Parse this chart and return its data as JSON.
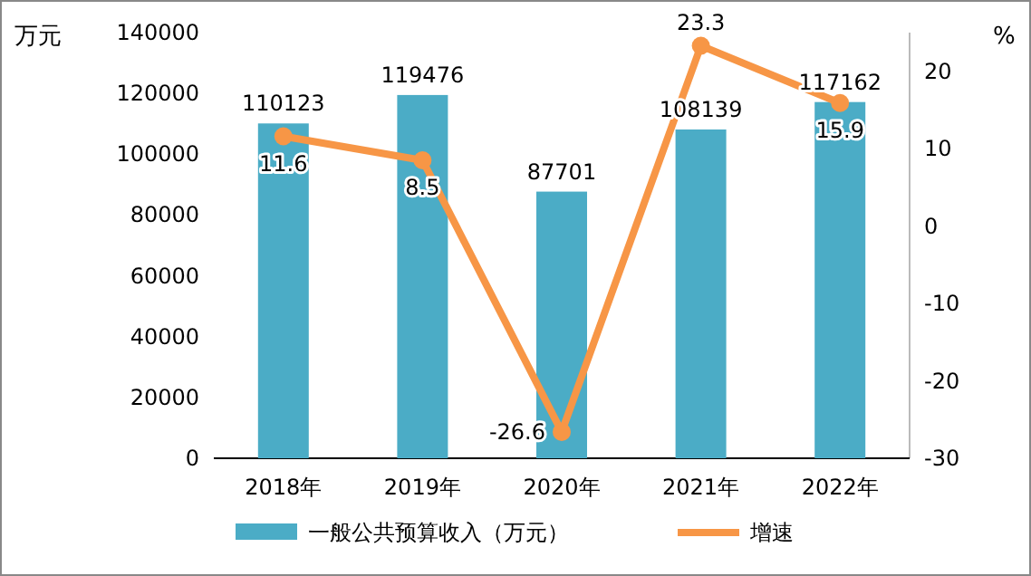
{
  "chart_data": {
    "type": "bar",
    "categories": [
      "2018年",
      "2019年",
      "2020年",
      "2021年",
      "2022年"
    ],
    "series": [
      {
        "name": "一般公共预算收入（万元）",
        "color": "#4bacc6",
        "values": [
          110123,
          119476,
          87701,
          108139,
          117162
        ]
      },
      {
        "name": "增速",
        "type": "line",
        "axis": "y2",
        "color": "#f79646",
        "values": [
          11.6,
          8.5,
          -26.6,
          23.3,
          15.9
        ]
      }
    ],
    "ylabel": "万元",
    "y2label": "%",
    "ylim": [
      0,
      140000
    ],
    "yticks": [
      0,
      20000,
      40000,
      60000,
      80000,
      100000,
      120000,
      140000
    ],
    "y2lim": [
      -30,
      25
    ],
    "y2ticks": [
      -30,
      -20,
      -10,
      0,
      10,
      20
    ],
    "data_labels": true,
    "legend": "bottom",
    "marker": "circle",
    "grid": false
  }
}
